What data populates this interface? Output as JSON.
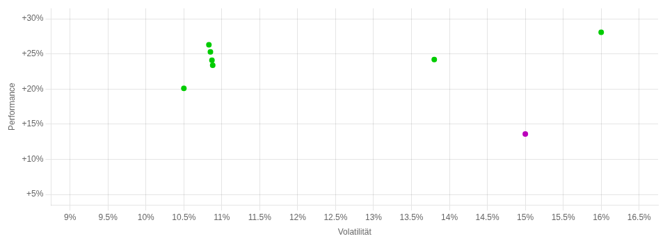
{
  "chart_data": {
    "type": "scatter",
    "xlabel": "Volatilität",
    "ylabel": "Performance",
    "xlim": [
      8.75,
      16.75
    ],
    "ylim": [
      3.5,
      31.5
    ],
    "xticks": [
      {
        "value": 9,
        "label": "9%"
      },
      {
        "value": 9.5,
        "label": "9.5%"
      },
      {
        "value": 10,
        "label": "10%"
      },
      {
        "value": 10.5,
        "label": "10.5%"
      },
      {
        "value": 11,
        "label": "11%"
      },
      {
        "value": 11.5,
        "label": "11.5%"
      },
      {
        "value": 12,
        "label": "12%"
      },
      {
        "value": 12.5,
        "label": "12.5%"
      },
      {
        "value": 13,
        "label": "13%"
      },
      {
        "value": 13.5,
        "label": "13.5%"
      },
      {
        "value": 14,
        "label": "14%"
      },
      {
        "value": 14.5,
        "label": "14.5%"
      },
      {
        "value": 15,
        "label": "15%"
      },
      {
        "value": 15.5,
        "label": "15.5%"
      },
      {
        "value": 16,
        "label": "16%"
      },
      {
        "value": 16.5,
        "label": "16.5%"
      }
    ],
    "yticks": [
      {
        "value": 5,
        "label": "+5%"
      },
      {
        "value": 10,
        "label": "+10%"
      },
      {
        "value": 15,
        "label": "+15%"
      },
      {
        "value": 20,
        "label": "+20%"
      },
      {
        "value": 25,
        "label": "+25%"
      },
      {
        "value": 30,
        "label": "+30%"
      }
    ],
    "grid": true,
    "series": [
      {
        "color": "#00cc00",
        "x": [
          10.83,
          10.85,
          10.87,
          10.88,
          10.5,
          13.8,
          16.0
        ],
        "values": [
          26.3,
          25.3,
          24.1,
          23.4,
          20.1,
          24.2,
          28.1
        ]
      },
      {
        "color": "#bb00bb",
        "x": [
          15.0
        ],
        "values": [
          13.6
        ]
      }
    ]
  }
}
